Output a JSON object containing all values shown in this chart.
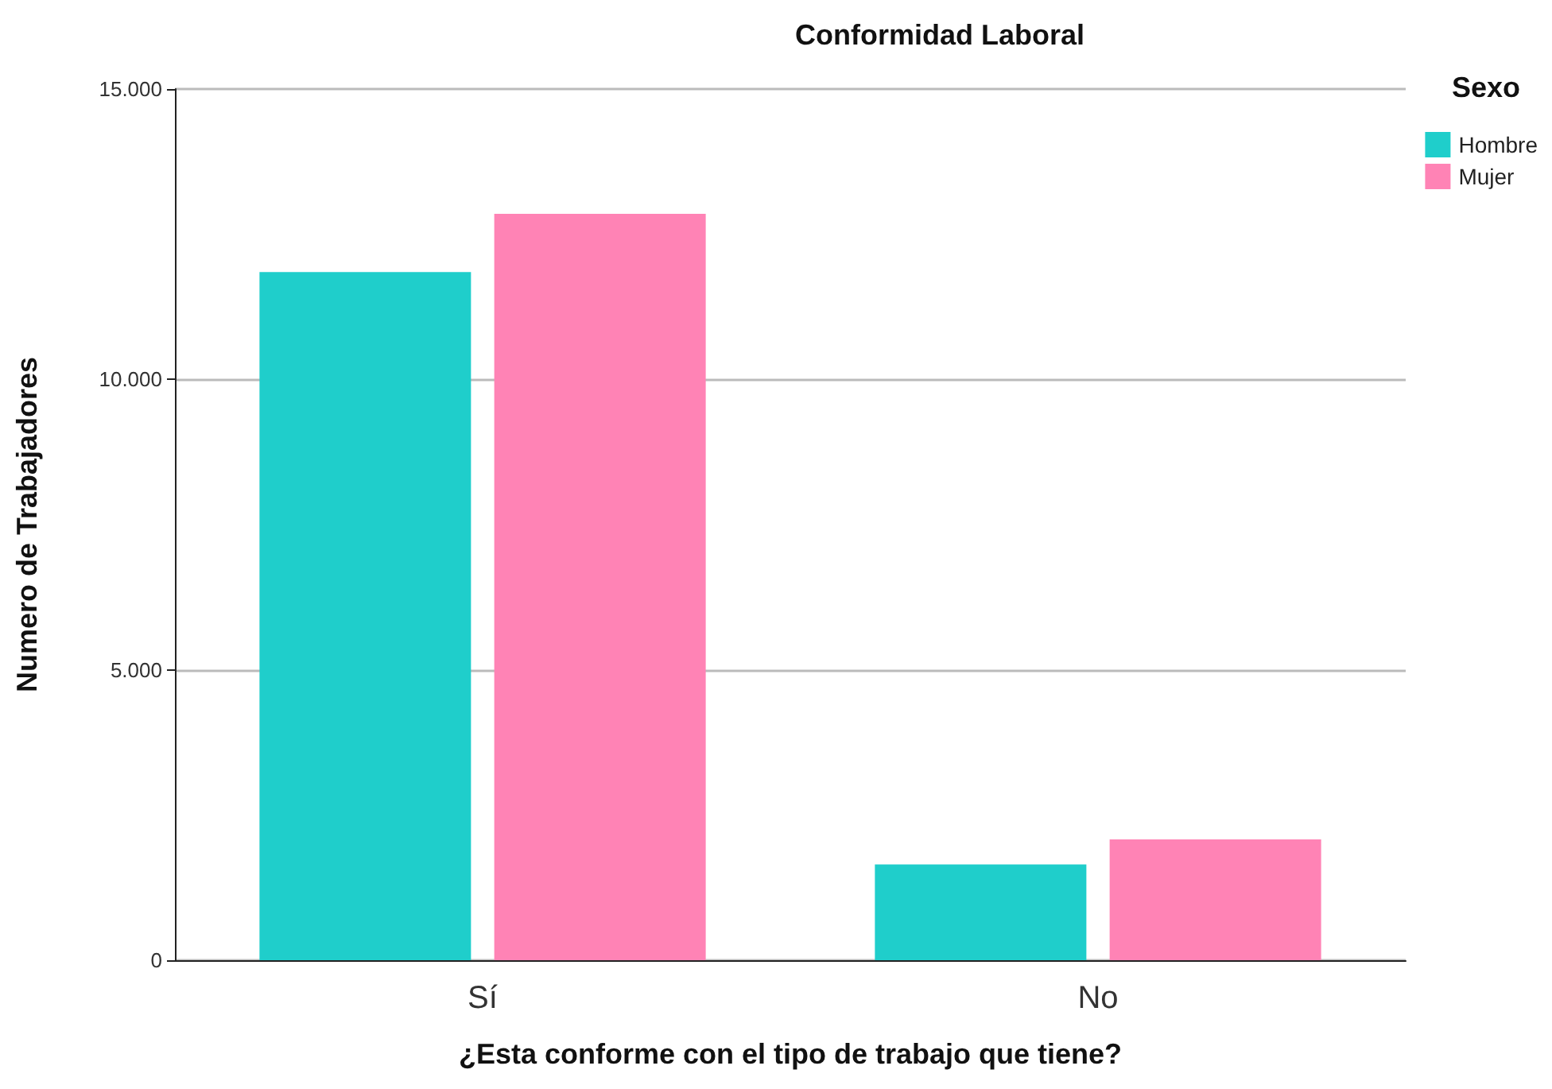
{
  "chart_data": {
    "type": "bar",
    "title": "Conformidad Laboral",
    "xlabel": "¿Esta conforme con el tipo de trabajo que tiene?",
    "ylabel": "Numero de Trabajadores",
    "legend_title": "Sexo",
    "categories": [
      "Sí",
      "No"
    ],
    "series": [
      {
        "name": "Hombre",
        "color": "#1fcecb",
        "values": [
          11850,
          1650
        ]
      },
      {
        "name": "Mujer",
        "color": "#ff83b5",
        "values": [
          12850,
          2080
        ]
      }
    ],
    "ylim": [
      0,
      15000
    ],
    "yticks": [
      {
        "value": 0,
        "label": "0"
      },
      {
        "value": 5000,
        "label": "5.000"
      },
      {
        "value": 10000,
        "label": "10.000"
      },
      {
        "value": 15000,
        "label": "15.000"
      }
    ],
    "grid": "y",
    "legend": "top right"
  }
}
